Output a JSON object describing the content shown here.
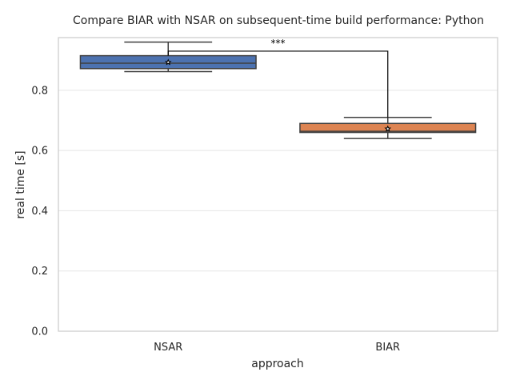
{
  "chart_data": {
    "type": "box",
    "title": "Compare BIAR with NSAR on subsequent-time build performance: Python",
    "xlabel": "approach",
    "ylabel": "real time [s]",
    "ylim": [
      0,
      0.975
    ],
    "yticks": [
      0.0,
      0.2,
      0.4,
      0.6,
      0.8
    ],
    "ytick_labels": [
      "0.0",
      "0.2",
      "0.4",
      "0.6",
      "0.8"
    ],
    "grid": "horizontal",
    "categories": [
      "NSAR",
      "BIAR"
    ],
    "boxes": [
      {
        "name": "NSAR",
        "color": "#4c72b0",
        "whisker_low": 0.862,
        "q1": 0.872,
        "median": 0.89,
        "q3": 0.915,
        "whisker_high": 0.96,
        "mean": 0.893
      },
      {
        "name": "BIAR",
        "color": "#dd8452",
        "whisker_low": 0.64,
        "q1": 0.66,
        "median": 0.664,
        "q3": 0.69,
        "whisker_high": 0.71,
        "mean": 0.672
      }
    ],
    "significance": {
      "label": "***",
      "between": [
        "NSAR",
        "BIAR"
      ],
      "level": 0.93
    }
  }
}
